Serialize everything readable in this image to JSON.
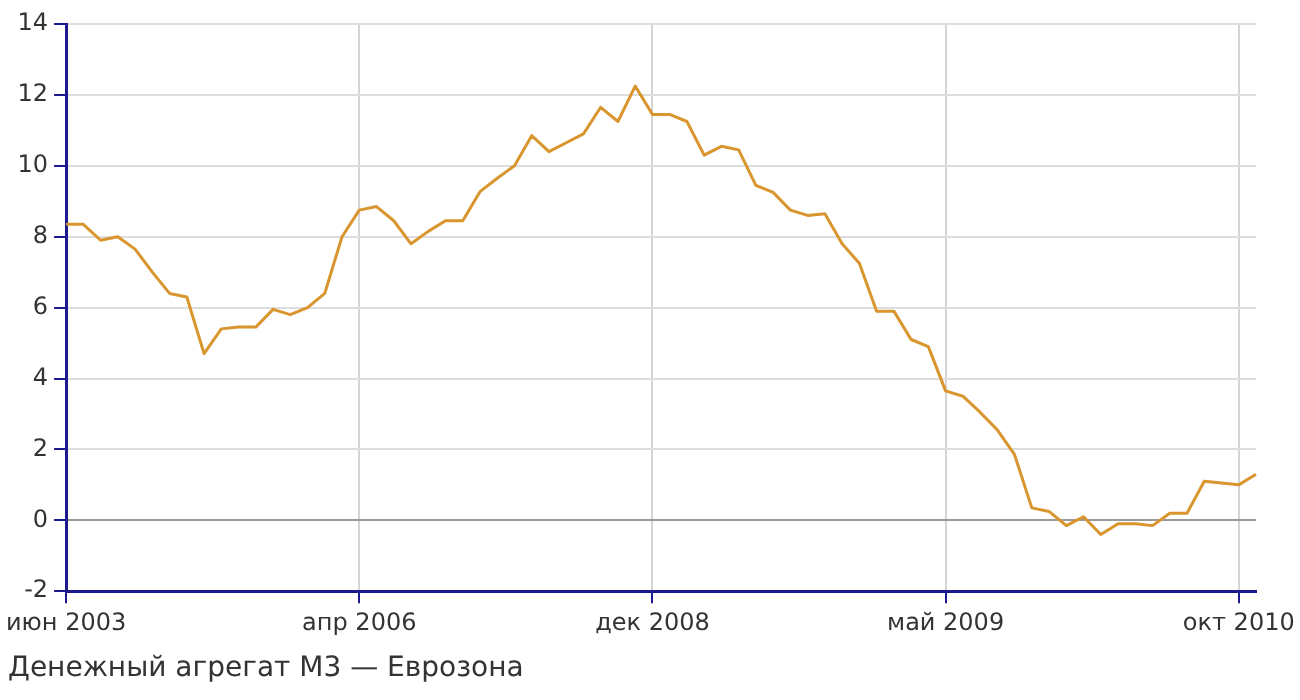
{
  "chart_data": {
    "type": "line",
    "categories": [
      "июн 2003",
      null,
      null,
      null,
      null,
      null,
      null,
      null,
      null,
      null,
      null,
      null,
      null,
      null,
      null,
      null,
      null,
      "апр 2006",
      null,
      null,
      null,
      null,
      null,
      null,
      null,
      null,
      null,
      null,
      null,
      null,
      null,
      null,
      null,
      null,
      "дек 2008",
      null,
      null,
      null,
      null,
      null,
      null,
      null,
      null,
      null,
      null,
      null,
      null,
      null,
      null,
      null,
      null,
      "май 2009",
      null,
      null,
      null,
      null,
      null,
      null,
      null,
      null,
      null,
      null,
      null,
      null,
      null,
      null,
      null,
      null,
      "окт 2010",
      null
    ],
    "series": [
      {
        "color": "#d9952e",
        "values": [
          8.35,
          8.35,
          7.9,
          8.0,
          7.65,
          7.0,
          6.4,
          6.3,
          4.7,
          5.4,
          5.45,
          5.45,
          5.95,
          5.8,
          6.0,
          6.4,
          8.0,
          8.75,
          8.85,
          8.45,
          7.8,
          8.15,
          8.45,
          8.45,
          9.27,
          9.65,
          10.0,
          10.85,
          10.4,
          10.65,
          10.9,
          11.65,
          11.25,
          12.25,
          11.45,
          11.45,
          11.25,
          10.3,
          10.55,
          10.45,
          9.45,
          9.25,
          8.75,
          8.6,
          8.65,
          7.8,
          7.25,
          5.9,
          5.9,
          5.1,
          4.9,
          3.65,
          3.5,
          3.05,
          2.55,
          1.85,
          0.35,
          0.25,
          -0.15,
          0.1,
          -0.4,
          -0.1,
          -0.1,
          -0.15,
          0.2,
          0.2,
          1.1,
          1.05,
          1.0,
          1.3
        ]
      }
    ],
    "ylim": [
      -2,
      14
    ],
    "yticks": [
      -2,
      0,
      2,
      4,
      6,
      8,
      10,
      12,
      14
    ],
    "grid": true,
    "legend": false,
    "marker": "none",
    "line_style": "solid",
    "annotations": [
      "Денежный агрегат M3 — Еврозона"
    ]
  }
}
